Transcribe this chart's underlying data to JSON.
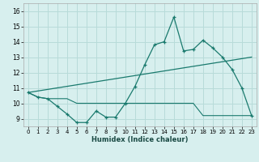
{
  "title": "",
  "xlabel": "Humidex (Indice chaleur)",
  "background_color": "#d7efee",
  "grid_color": "#b8dbd9",
  "line_color": "#1a7a6e",
  "xlim": [
    -0.5,
    23.5
  ],
  "ylim": [
    8.5,
    16.5
  ],
  "yticks": [
    9,
    10,
    11,
    12,
    13,
    14,
    15,
    16
  ],
  "xticks": [
    0,
    1,
    2,
    3,
    4,
    5,
    6,
    7,
    8,
    9,
    10,
    11,
    12,
    13,
    14,
    15,
    16,
    17,
    18,
    19,
    20,
    21,
    22,
    23
  ],
  "line1_x": [
    0,
    1,
    2,
    3,
    4,
    5,
    6,
    7,
    8,
    9,
    10,
    11,
    12,
    13,
    14,
    15,
    16,
    17,
    18,
    19,
    20,
    21,
    22,
    23
  ],
  "line1_y": [
    10.7,
    10.4,
    10.3,
    9.8,
    9.3,
    8.75,
    8.75,
    9.5,
    9.1,
    9.1,
    10.0,
    11.1,
    12.5,
    13.8,
    14.0,
    15.6,
    13.4,
    13.5,
    14.1,
    13.6,
    13.0,
    12.2,
    11.0,
    9.2
  ],
  "line2_x": [
    0,
    1,
    2,
    3,
    4,
    5,
    6,
    7,
    8,
    9,
    10,
    11,
    12,
    13,
    14,
    15,
    16,
    17,
    18,
    19,
    20,
    21,
    22,
    23
  ],
  "line2_y": [
    10.7,
    10.4,
    10.3,
    10.3,
    10.3,
    10.0,
    10.0,
    10.0,
    10.0,
    10.0,
    10.0,
    10.0,
    10.0,
    10.0,
    10.0,
    10.0,
    10.0,
    10.0,
    9.2,
    9.2,
    9.2,
    9.2,
    9.2,
    9.2
  ],
  "line3_x": [
    0,
    23
  ],
  "line3_y": [
    10.7,
    13.0
  ]
}
